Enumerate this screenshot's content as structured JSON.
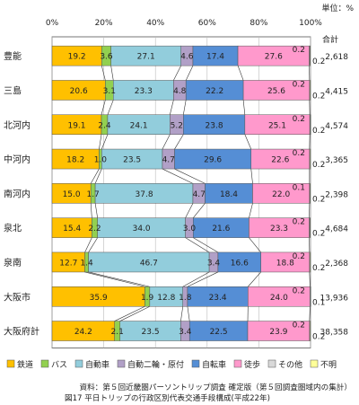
{
  "unit_label": "単位：%",
  "total_header": "合計",
  "source_note": "資料：第５回近畿圏パーソントリップ調査 確定版（第５回調査圏域内の集計）",
  "figure_caption": "図17 平日トリップの行政区別代表交通手段構成(平成22年)",
  "colors": {
    "鉄道": "#ffc000",
    "バス": "#92d050",
    "自動車": "#92cddc",
    "自動二輪・原付": "#b1a0c7",
    "自転車": "#558ed5",
    "徒歩": "#ff99cc",
    "その他": "#d9d9d9",
    "不明": "#ffff99"
  },
  "chart_data": {
    "type": "bar",
    "orientation": "horizontal",
    "stacked": "percent",
    "title": "",
    "xlabel": "",
    "ylabel": "",
    "xlim": [
      0,
      100
    ],
    "x_ticks": [
      "0%",
      "20%",
      "40%",
      "60%",
      "80%",
      "100%"
    ],
    "grid": true,
    "legend_position": "bottom",
    "categories": [
      "豊能",
      "三島",
      "北河内",
      "中河内",
      "南河内",
      "泉北",
      "泉南",
      "大阪市",
      "大阪府計"
    ],
    "totals": [
      "2,618",
      "4,415",
      "4,574",
      "3,365",
      "2,398",
      "4,684",
      "2,368",
      "13,936",
      "38,358"
    ],
    "series": [
      {
        "name": "鉄道",
        "values": [
          19.2,
          20.6,
          19.1,
          18.2,
          15.0,
          15.4,
          12.7,
          35.9,
          24.2
        ]
      },
      {
        "name": "バス",
        "values": [
          3.6,
          3.1,
          2.4,
          1.0,
          1.7,
          2.2,
          1.4,
          1.9,
          2.1
        ]
      },
      {
        "name": "自動車",
        "values": [
          27.1,
          23.3,
          24.1,
          23.5,
          37.8,
          34.0,
          46.7,
          12.8,
          23.5
        ]
      },
      {
        "name": "自動二輪・原付",
        "values": [
          4.6,
          4.8,
          5.2,
          4.7,
          4.7,
          3.0,
          3.4,
          1.8,
          3.4
        ]
      },
      {
        "name": "自転車",
        "values": [
          17.4,
          22.2,
          23.8,
          29.6,
          18.4,
          21.6,
          16.6,
          23.4,
          22.5
        ]
      },
      {
        "name": "徒歩",
        "values": [
          27.6,
          25.6,
          25.1,
          22.6,
          22.0,
          23.3,
          18.8,
          24.0,
          23.9
        ]
      },
      {
        "name": "その他",
        "values": [
          0.2,
          0.2,
          0.2,
          0.2,
          0.1,
          0.2,
          0.2,
          0.2,
          0.2
        ]
      },
      {
        "name": "不明",
        "values": [
          0.2,
          0.2,
          0.2,
          0.2,
          0.2,
          0.2,
          0.2,
          0.1,
          0.2
        ]
      }
    ]
  }
}
